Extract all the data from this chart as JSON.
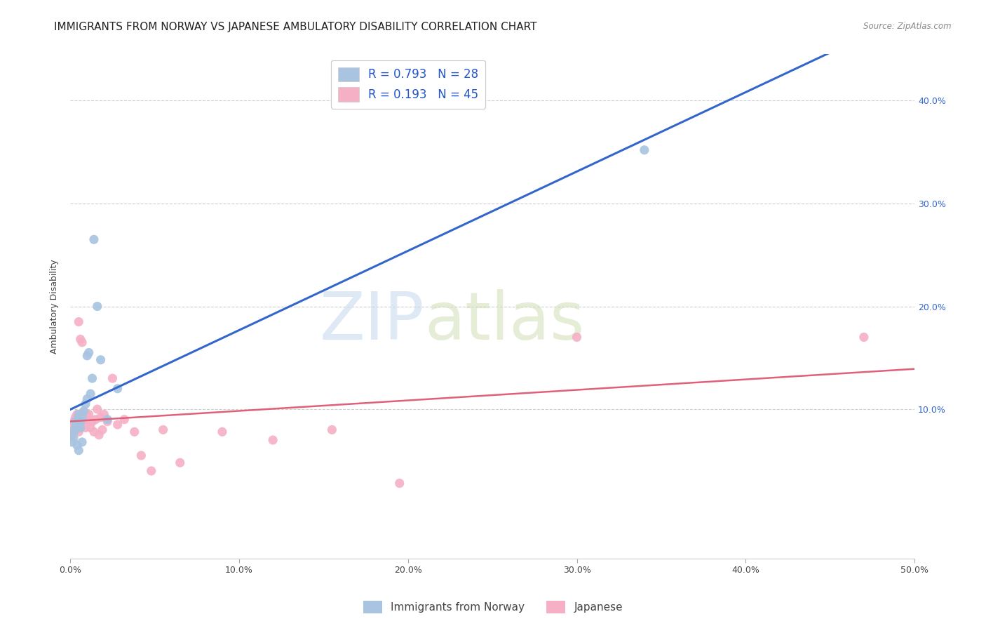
{
  "title": "IMMIGRANTS FROM NORWAY VS JAPANESE AMBULATORY DISABILITY CORRELATION CHART",
  "source": "Source: ZipAtlas.com",
  "ylabel": "Ambulatory Disability",
  "xlim": [
    0.0,
    0.5
  ],
  "ylim": [
    -0.045,
    0.445
  ],
  "xtick_labels": [
    "0.0%",
    "10.0%",
    "20.0%",
    "30.0%",
    "40.0%",
    "50.0%"
  ],
  "xtick_vals": [
    0.0,
    0.1,
    0.2,
    0.3,
    0.4,
    0.5
  ],
  "ytick_vals": [
    0.1,
    0.2,
    0.3,
    0.4
  ],
  "right_ytick_labels": [
    "10.0%",
    "20.0%",
    "30.0%",
    "40.0%"
  ],
  "norway_color": "#a8c4e0",
  "norway_line_color": "#3366cc",
  "japanese_color": "#f5b0c5",
  "japanese_line_color": "#e0607a",
  "norway_R": 0.793,
  "norway_N": 28,
  "japanese_R": 0.193,
  "japanese_N": 45,
  "legend_label_norway": "Immigrants from Norway",
  "legend_label_japanese": "Japanese",
  "watermark_zip": "ZIP",
  "watermark_atlas": "atlas",
  "norway_x": [
    0.001,
    0.002,
    0.002,
    0.003,
    0.003,
    0.003,
    0.004,
    0.004,
    0.005,
    0.005,
    0.005,
    0.006,
    0.006,
    0.007,
    0.007,
    0.008,
    0.009,
    0.01,
    0.01,
    0.011,
    0.012,
    0.013,
    0.014,
    0.016,
    0.018,
    0.022,
    0.028,
    0.34
  ],
  "norway_y": [
    0.068,
    0.072,
    0.078,
    0.082,
    0.08,
    0.088,
    0.085,
    0.065,
    0.092,
    0.06,
    0.095,
    0.088,
    0.082,
    0.092,
    0.068,
    0.098,
    0.105,
    0.152,
    0.11,
    0.155,
    0.115,
    0.13,
    0.265,
    0.2,
    0.148,
    0.09,
    0.12,
    0.352
  ],
  "japanese_x": [
    0.001,
    0.001,
    0.002,
    0.002,
    0.003,
    0.003,
    0.004,
    0.004,
    0.005,
    0.005,
    0.005,
    0.006,
    0.006,
    0.007,
    0.007,
    0.008,
    0.008,
    0.009,
    0.01,
    0.01,
    0.011,
    0.012,
    0.013,
    0.014,
    0.015,
    0.016,
    0.017,
    0.018,
    0.019,
    0.02,
    0.022,
    0.025,
    0.028,
    0.032,
    0.038,
    0.042,
    0.048,
    0.055,
    0.065,
    0.09,
    0.12,
    0.155,
    0.195,
    0.3,
    0.47
  ],
  "japanese_y": [
    0.082,
    0.075,
    0.088,
    0.078,
    0.092,
    0.08,
    0.095,
    0.085,
    0.092,
    0.078,
    0.185,
    0.095,
    0.168,
    0.09,
    0.165,
    0.098,
    0.088,
    0.082,
    0.09,
    0.095,
    0.095,
    0.082,
    0.088,
    0.078,
    0.09,
    0.1,
    0.075,
    0.092,
    0.08,
    0.095,
    0.088,
    0.13,
    0.085,
    0.09,
    0.078,
    0.055,
    0.04,
    0.08,
    0.048,
    0.078,
    0.07,
    0.08,
    0.028,
    0.17,
    0.17
  ],
  "background_color": "#ffffff",
  "grid_color": "#d0d0d0",
  "title_fontsize": 11,
  "axis_label_fontsize": 9,
  "tick_fontsize": 9,
  "marker_size": 90
}
